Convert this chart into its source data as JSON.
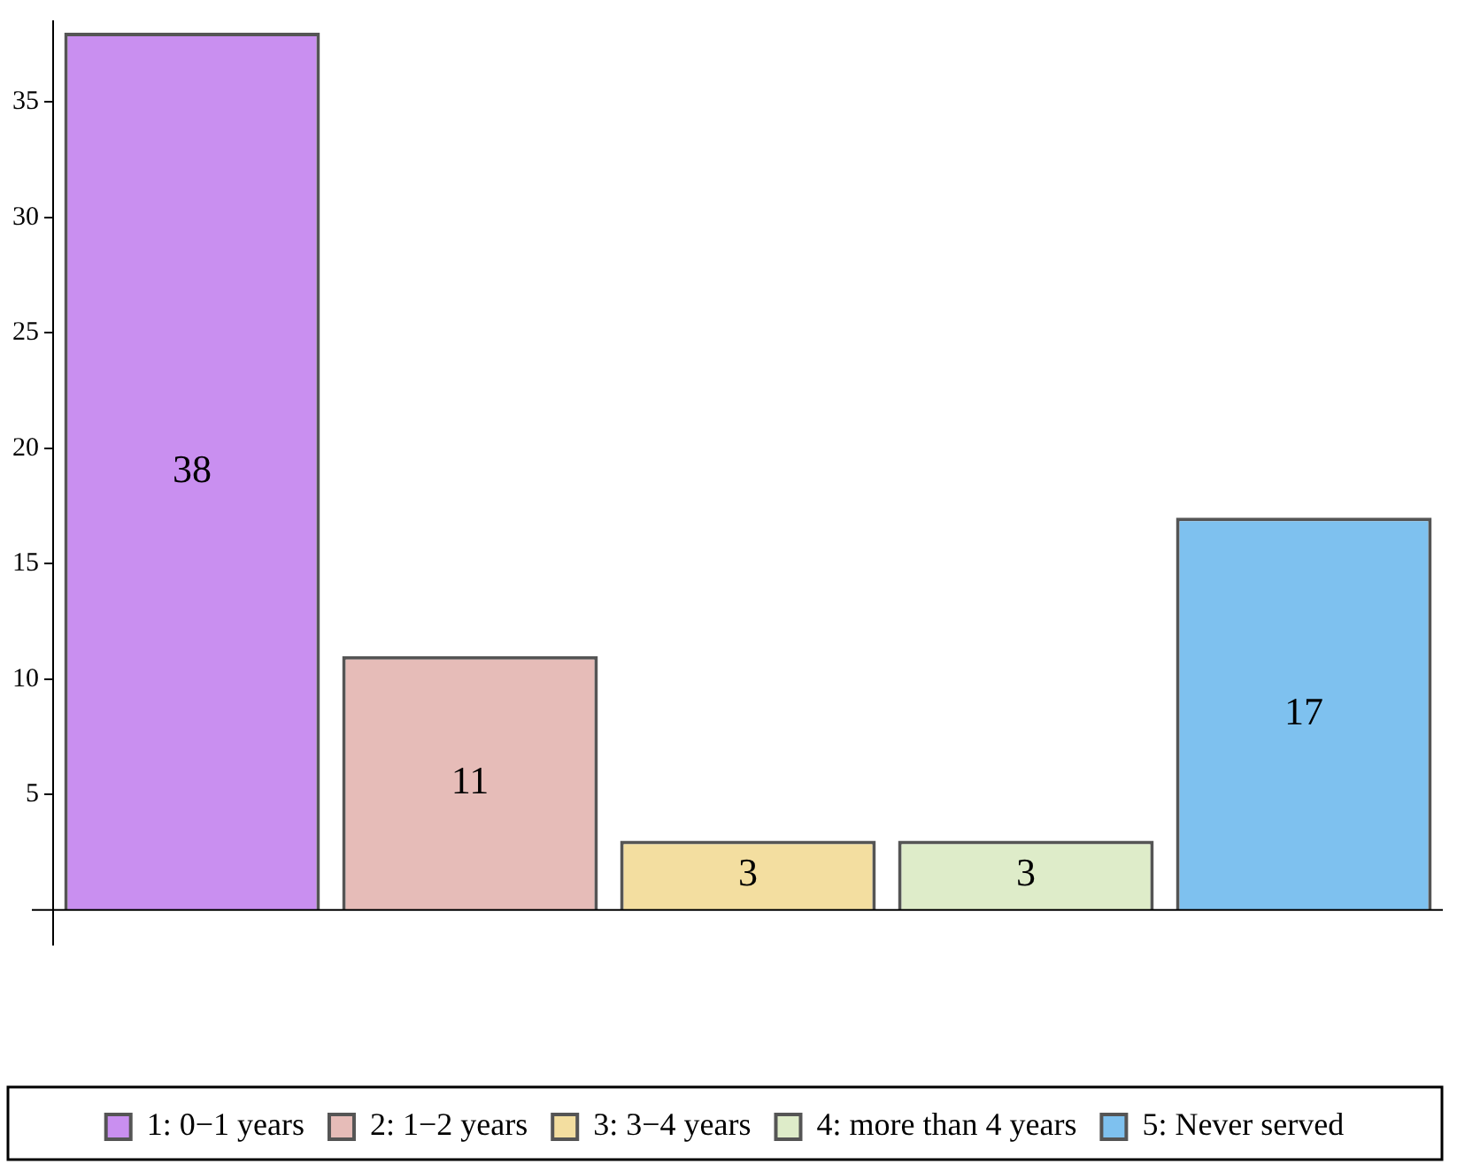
{
  "chart_data": {
    "type": "bar",
    "categories": [
      null,
      null,
      null,
      null,
      null
    ],
    "series": [
      {
        "name": "1: 0−1 years",
        "color": "#c98ff0",
        "values": [
          38,
          null,
          null,
          null,
          null
        ]
      },
      {
        "name": "2: 1−2 years",
        "color": "#e6bcb8",
        "values": [
          null,
          11,
          null,
          null,
          null
        ]
      },
      {
        "name": "3: 3−4 years",
        "color": "#f3dea0",
        "values": [
          null,
          null,
          3,
          null,
          null
        ]
      },
      {
        "name": "4: more than 4 years",
        "color": "#deecc9",
        "values": [
          null,
          null,
          null,
          3,
          null
        ]
      },
      {
        "name": "5: Never served",
        "color": "#7ec1ef",
        "values": [
          null,
          null,
          null,
          null,
          17
        ]
      }
    ],
    "ylim": [
      -1.5,
      38.5
    ],
    "yticks": [
      5,
      10,
      15,
      20,
      25,
      30,
      35
    ],
    "tick_labels": "y",
    "data_labels": true,
    "legend": "bottom",
    "grid": false
  }
}
